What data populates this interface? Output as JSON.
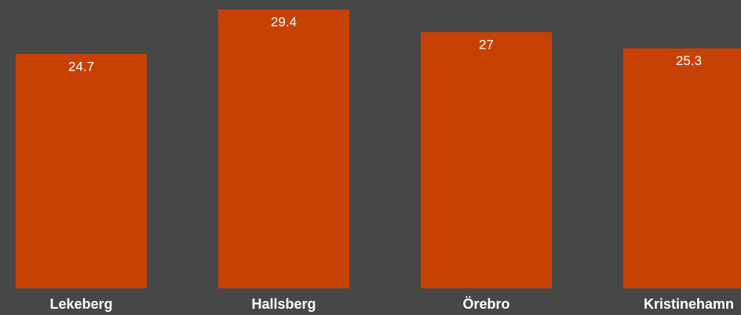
{
  "chart_data": {
    "type": "bar",
    "categories": [
      "Lekeberg",
      "Hallsberg",
      "Örebro",
      "Kristinehamn"
    ],
    "values": [
      24.7,
      29.4,
      27,
      25.3
    ],
    "color": "#c84104",
    "ylim": [
      0,
      30.4
    ]
  }
}
